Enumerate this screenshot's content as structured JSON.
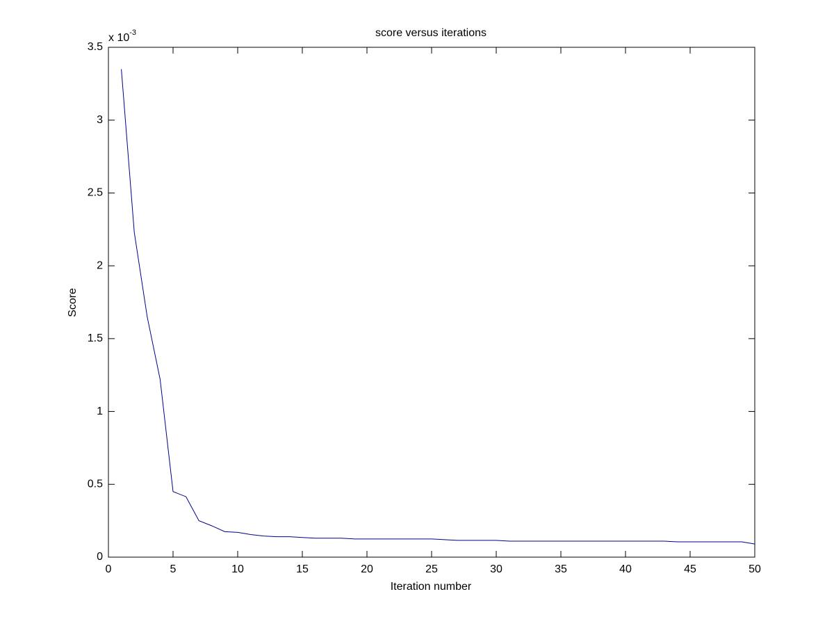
{
  "chart_data": {
    "type": "line",
    "title": "score versus iterations",
    "x_label": "Iteration number",
    "y_label": "Score",
    "y_multiplier": {
      "base": "x 10",
      "exponent": "-3"
    },
    "x": [
      1,
      2,
      3,
      4,
      5,
      6,
      7,
      8,
      9,
      10,
      11,
      12,
      13,
      14,
      15,
      16,
      17,
      18,
      19,
      20,
      21,
      22,
      23,
      24,
      25,
      26,
      27,
      28,
      29,
      30,
      31,
      32,
      33,
      34,
      35,
      36,
      37,
      38,
      39,
      40,
      41,
      42,
      43,
      44,
      45,
      46,
      47,
      48,
      49,
      50
    ],
    "series": [
      {
        "name": "score",
        "color": "#00008b",
        "values": [
          3.35,
          2.23,
          1.65,
          1.22,
          0.45,
          0.415,
          0.25,
          0.215,
          0.175,
          0.17,
          0.155,
          0.145,
          0.14,
          0.14,
          0.135,
          0.13,
          0.13,
          0.13,
          0.125,
          0.125,
          0.125,
          0.125,
          0.125,
          0.125,
          0.125,
          0.12,
          0.115,
          0.115,
          0.115,
          0.115,
          0.11,
          0.11,
          0.11,
          0.11,
          0.11,
          0.11,
          0.11,
          0.11,
          0.11,
          0.11,
          0.11,
          0.11,
          0.11,
          0.105,
          0.105,
          0.105,
          0.105,
          0.105,
          0.105,
          0.09
        ]
      }
    ],
    "xlim": [
      0,
      50
    ],
    "ylim": [
      0,
      3.5
    ],
    "xticks": [
      0,
      5,
      10,
      15,
      20,
      25,
      30,
      35,
      40,
      45,
      50
    ],
    "yticks": [
      0,
      0.5,
      1,
      1.5,
      2,
      2.5,
      3,
      3.5
    ],
    "grid": false
  }
}
